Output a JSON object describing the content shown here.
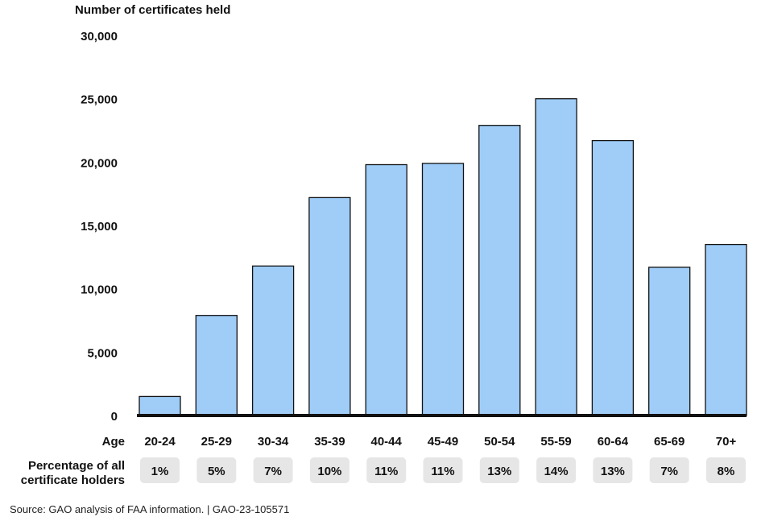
{
  "chart_data": {
    "type": "bar",
    "ylabel": "Number of certificates held",
    "xlabel": "Age",
    "row_label": "Percentage of all certificate holders",
    "row_label_lines": [
      "Percentage of all",
      "certificate holders"
    ],
    "categories": [
      "20-24",
      "25-29",
      "30-34",
      "35-39",
      "40-44",
      "45-49",
      "50-54",
      "55-59",
      "60-64",
      "65-69",
      "70+"
    ],
    "values": [
      1500,
      7900,
      11800,
      17200,
      19800,
      19900,
      22900,
      25000,
      21700,
      11700,
      13500
    ],
    "percentages": [
      "1%",
      "5%",
      "7%",
      "10%",
      "11%",
      "11%",
      "13%",
      "14%",
      "13%",
      "7%",
      "8%"
    ],
    "ylim": [
      0,
      30000
    ],
    "yticks": [
      0,
      5000,
      10000,
      15000,
      20000,
      25000,
      30000
    ],
    "ytick_labels": [
      "0",
      "5,000",
      "10,000",
      "15,000",
      "20,000",
      "25,000",
      "30,000"
    ],
    "grid": false,
    "bar_color": "#9fcdf8",
    "bar_outline": "#111111",
    "pill_color": "#e6e6e6"
  },
  "source": "Source: GAO analysis of FAA information.  |  GAO-23-105571"
}
